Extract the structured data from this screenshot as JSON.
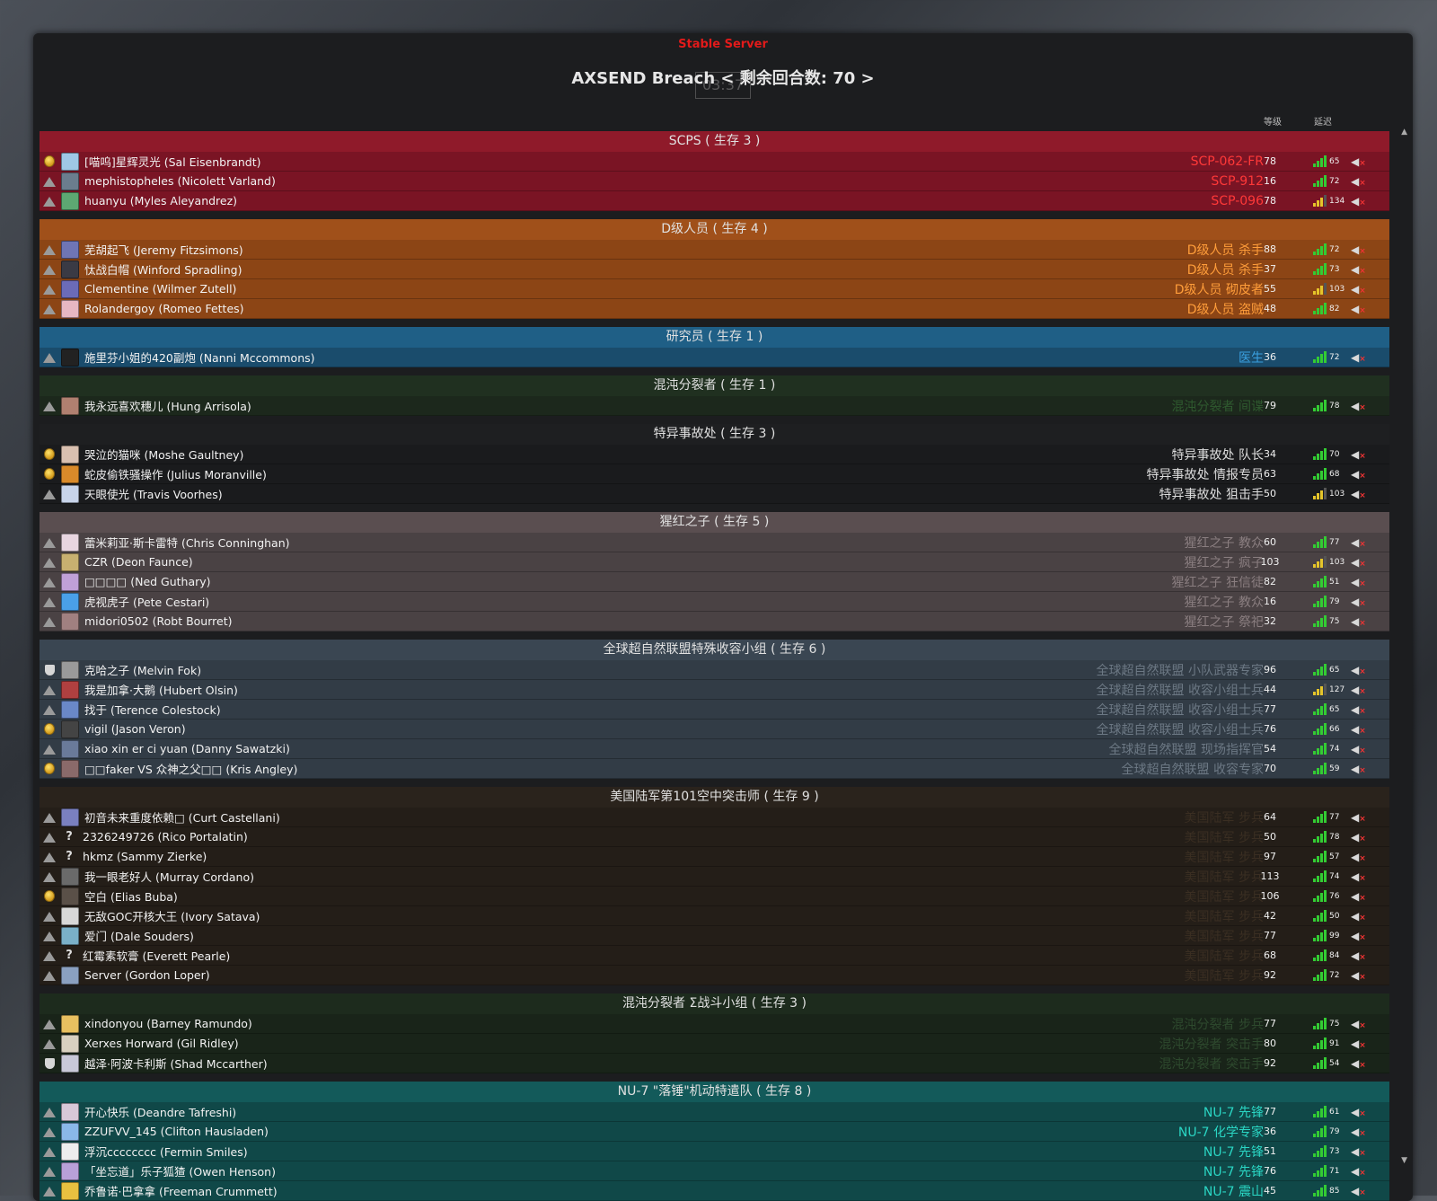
{
  "header": {
    "server_label": "Stable Server",
    "title": "AXSEND Breach < 剩余回合数: 70 >",
    "overlay_text": "03:37",
    "col_rank": "等级",
    "col_ping": "延迟"
  },
  "colors": {
    "ping_good": "#33cc33",
    "ping_mid": "#e5c52a"
  },
  "teams": [
    {
      "title": "SCPS ( 生存 3 )",
      "header_bg": "#8f1a2a",
      "row_bg": "#7a1424",
      "role_color": "#ff3838",
      "gap": true,
      "players": [
        {
          "badge": "gold",
          "avatar": "#9fc8e6",
          "name": "[喵呜]星辉灵光 (Sal Eisenbrandt)",
          "role": "SCP-062-FR",
          "rank": "78",
          "ping": "65"
        },
        {
          "badge": "user",
          "avatar": "#6b7d8e",
          "name": "mephistopheles (Nicolett Varland)",
          "role": "SCP-912",
          "rank": "16",
          "ping": "72"
        },
        {
          "badge": "user",
          "avatar": "#5da872",
          "name": "huanyu (Myles Aleyandrez)",
          "role": "SCP-096",
          "rank": "78",
          "ping": "134"
        }
      ]
    },
    {
      "title": "D级人员 ( 生存 4 )",
      "header_bg": "#a0501a",
      "row_bg": "#8c4515",
      "role_color": "#ff9d3a",
      "gap": true,
      "players": [
        {
          "badge": "user",
          "avatar": "#6f75b5",
          "name": "芜胡起飞 (Jeremy Fitzsimons)",
          "role": "D级人员 杀手",
          "rank": "88",
          "ping": "72"
        },
        {
          "badge": "user",
          "avatar": "#3a3a44",
          "name": "忲战白帽 (Winford Spradling)",
          "role": "D级人员 杀手",
          "rank": "37",
          "ping": "73"
        },
        {
          "badge": "user",
          "avatar": "#6b6bb8",
          "name": "Clementine (Wilmer Zutell)",
          "role": "D级人员 砌皮者",
          "rank": "55",
          "ping": "103"
        },
        {
          "badge": "user",
          "avatar": "#e7b7c3",
          "name": "Rolandergoy (Romeo Fettes)",
          "role": "D级人员 盗贼",
          "rank": "48",
          "ping": "82"
        }
      ]
    },
    {
      "title": "研究员 ( 生存 1 )",
      "header_bg": "#1f5f86",
      "row_bg": "#1a4c6c",
      "role_color": "#3aa0e0",
      "gap": true,
      "players": [
        {
          "badge": "user",
          "avatar": "#222",
          "name": "施里芬小姐的420副炮 (Nanni Mccommons)",
          "role": "医生",
          "rank": "36",
          "ping": "72"
        }
      ]
    },
    {
      "title": "混沌分裂者 ( 生存 1 )",
      "header_bg": "#203020",
      "row_bg": "#1c281c",
      "role_color": "#2f5a2f",
      "gap": true,
      "players": [
        {
          "badge": "user",
          "avatar": "#b08070",
          "name": "我永远喜欢穗儿 (Hung Arrisola)",
          "role": "混沌分裂者 间谍",
          "rank": "79",
          "ping": "78"
        }
      ]
    },
    {
      "title": "特异事故处 ( 生存 3 )",
      "header_bg": "#1e1f21",
      "row_bg": "#1a1b1d",
      "role_color": "#dddddd",
      "gap": true,
      "players": [
        {
          "badge": "gold",
          "avatar": "#d9c0b0",
          "name": "哭泣的猫咪 (Moshe Gaultney)",
          "role": "特异事故处 队长",
          "rank": "34",
          "ping": "70"
        },
        {
          "badge": "gold",
          "avatar": "#d98a2a",
          "name": "蛇皮偷铁骚操作 (Julius Moranville)",
          "role": "特异事故处 情报专员",
          "rank": "63",
          "ping": "68"
        },
        {
          "badge": "user",
          "avatar": "#c8d4ea",
          "name": "天眼使光 (Travis Voorhes)",
          "role": "特异事故处 狙击手",
          "rank": "50",
          "ping": "103"
        }
      ]
    },
    {
      "title": "猩红之子 ( 生存 5 )",
      "header_bg": "#5a4e50",
      "row_bg": "#4a4244",
      "role_color": "#8a7e80",
      "gap": true,
      "players": [
        {
          "badge": "user",
          "avatar": "#e8d5e0",
          "name": "蕾米莉亚·斯卡雷特 (Chris Conninghan)",
          "role": "猩红之子 教众",
          "rank": "60",
          "ping": "77"
        },
        {
          "badge": "user",
          "avatar": "#c7b070",
          "name": "CZR (Deon Faunce)",
          "role": "猩红之子 疯子",
          "rank": "103",
          "ping": "103"
        },
        {
          "badge": "user",
          "avatar": "#c0a0d8",
          "name": "□□□□ (Ned Guthary)",
          "role": "猩红之子 狂信徒",
          "rank": "82",
          "ping": "51"
        },
        {
          "badge": "user",
          "avatar": "#4aa0e8",
          "name": "虎视虎子 (Pete Cestari)",
          "role": "猩红之子 教众",
          "rank": "16",
          "ping": "79"
        },
        {
          "badge": "user",
          "avatar": "#a08080",
          "name": "midori0502 (Robt Bourret)",
          "role": "猩红之子 祭祀",
          "rank": "32",
          "ping": "75"
        }
      ]
    },
    {
      "title": "全球超自然联盟特殊收容小组 ( 生存 6 )",
      "header_bg": "#3a4652",
      "row_bg": "#323c46",
      "role_color": "#6c7884",
      "gap": true,
      "players": [
        {
          "badge": "shield",
          "avatar": "#9a9a9a",
          "name": "克哈之子 (Melvin Fok)",
          "role": "全球超自然联盟 小队武器专家",
          "rank": "96",
          "ping": "65"
        },
        {
          "badge": "user",
          "avatar": "#b04040",
          "name": "我是加拿·大鹅 (Hubert Olsin)",
          "role": "全球超自然联盟 收容小组士兵",
          "rank": "44",
          "ping": "127"
        },
        {
          "badge": "user",
          "avatar": "#6a88c8",
          "name": "找于 (Terence Colestock)",
          "role": "全球超自然联盟 收容小组士兵",
          "rank": "77",
          "ping": "65"
        },
        {
          "badge": "gold",
          "avatar": "#444",
          "name": "vigil (Jason Veron)",
          "role": "全球超自然联盟 收容小组士兵",
          "rank": "76",
          "ping": "66"
        },
        {
          "badge": "user",
          "avatar": "#6a7a9a",
          "name": "xiao xin er ci yuan (Danny Sawatzki)",
          "role": "全球超自然联盟 现场指挥官",
          "rank": "54",
          "ping": "74"
        },
        {
          "badge": "gold",
          "avatar": "#8a6a6a",
          "name": "□□faker VS 众神之父□□ (Kris Angley)",
          "role": "全球超自然联盟 收容专家",
          "rank": "70",
          "ping": "59"
        }
      ]
    },
    {
      "title": "美国陆军第101空中突击师 ( 生存 9 )",
      "header_bg": "#2a231c",
      "row_bg": "#241e18",
      "role_color": "#3a2e22",
      "gap": true,
      "players": [
        {
          "badge": "user",
          "avatar": "#7a80c0",
          "name": "初音未来重度依赖□ (Curt Castellani)",
          "role": "美国陆军 步兵",
          "rank": "64",
          "ping": "77"
        },
        {
          "badge": "user",
          "avatar": "q",
          "name": "2326249726 (Rico Portalatin)",
          "role": "美国陆军 步兵",
          "rank": "50",
          "ping": "78"
        },
        {
          "badge": "user",
          "avatar": "q",
          "name": "hkmz (Sammy Zierke)",
          "role": "美国陆军 步兵",
          "rank": "97",
          "ping": "57"
        },
        {
          "badge": "user",
          "avatar": "#6a6a6a",
          "name": "我一眼老好人 (Murray Cordano)",
          "role": "美国陆军 步兵",
          "rank": "113",
          "ping": "74"
        },
        {
          "badge": "gold",
          "avatar": "#5a5048",
          "name": "空白 (Elias Buba)",
          "role": "美国陆军 步兵",
          "rank": "106",
          "ping": "76"
        },
        {
          "badge": "user",
          "avatar": "#d8d8d8",
          "name": "无敌GOC开核大王 (Ivory Satava)",
          "role": "美国陆军 步兵",
          "rank": "42",
          "ping": "50"
        },
        {
          "badge": "user",
          "avatar": "#7ab0c8",
          "name": "爱门 (Dale Souders)",
          "role": "美国陆军 步兵",
          "rank": "77",
          "ping": "99"
        },
        {
          "badge": "user",
          "avatar": "q",
          "name": "红霉素软膏 (Everett Pearle)",
          "role": "美国陆军 步兵",
          "rank": "68",
          "ping": "84"
        },
        {
          "badge": "user",
          "avatar": "#8aa0c0",
          "name": "Server (Gordon Loper)",
          "role": "美国陆军 步兵",
          "rank": "92",
          "ping": "72"
        }
      ]
    },
    {
      "title": "混沌分裂者 Σ战斗小组 ( 生存 3 )",
      "header_bg": "#1d2b1d",
      "row_bg": "#192419",
      "role_color": "#2e4a2e",
      "gap": true,
      "players": [
        {
          "badge": "user",
          "avatar": "#e8c060",
          "name": "xindonyou (Barney Ramundo)",
          "role": "混沌分裂者 步兵",
          "rank": "77",
          "ping": "75"
        },
        {
          "badge": "user",
          "avatar": "#d8d0c0",
          "name": "Xerxes Horward (Gil Ridley)",
          "role": "混沌分裂者 突击手",
          "rank": "80",
          "ping": "91"
        },
        {
          "badge": "shield",
          "avatar": "#c8c8d8",
          "name": "越泽·阿波卡利斯 (Shad Mccarther)",
          "role": "混沌分裂者 突击手",
          "rank": "92",
          "ping": "54"
        }
      ]
    },
    {
      "title": "NU-7 \"落锤\"机动特遣队 ( 生存 8 )",
      "header_bg": "#135a5a",
      "row_bg": "#104848",
      "role_color": "#2ad6c4",
      "gap": false,
      "players": [
        {
          "badge": "user",
          "avatar": "#d8c8d8",
          "name": "开心快乐 (Deandre Tafreshi)",
          "role": "NU-7 先锋",
          "rank": "77",
          "ping": "61"
        },
        {
          "badge": "user",
          "avatar": "#8ab8e8",
          "name": "ZZUFVV_145 (Clifton Hausladen)",
          "role": "NU-7 化学专家",
          "rank": "36",
          "ping": "79"
        },
        {
          "badge": "user",
          "avatar": "#eee",
          "name": "浮沉cccccccc (Fermin Smiles)",
          "role": "NU-7 先锋",
          "rank": "51",
          "ping": "73"
        },
        {
          "badge": "user",
          "avatar": "#b8a0d8",
          "name": "「坐忘道」乐子狐猹 (Owen Henson)",
          "role": "NU-7 先锋",
          "rank": "76",
          "ping": "71"
        },
        {
          "badge": "user",
          "avatar": "#e8c040",
          "name": "乔鲁诺·巴拿拿 (Freeman Crummett)",
          "role": "NU-7 震山",
          "rank": "45",
          "ping": "85"
        }
      ]
    }
  ]
}
